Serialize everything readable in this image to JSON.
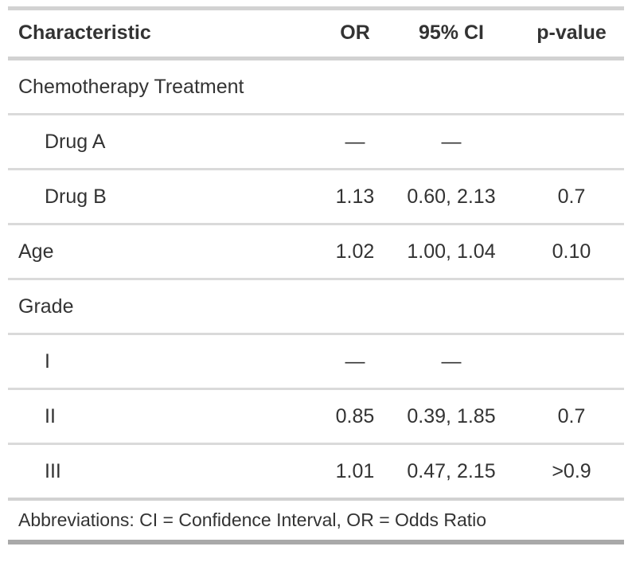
{
  "chart_data": {
    "type": "table",
    "title": "",
    "columns": [
      {
        "key": "label",
        "label": "Characteristic",
        "align": "left"
      },
      {
        "key": "or",
        "label": "OR",
        "align": "center"
      },
      {
        "key": "ci",
        "label": "95% CI",
        "align": "center"
      },
      {
        "key": "p",
        "label": "p-value",
        "align": "center"
      }
    ],
    "rows": [
      {
        "label": "Chemotherapy Treatment",
        "indent": false,
        "or": "",
        "ci": "",
        "p": ""
      },
      {
        "label": "Drug A",
        "indent": true,
        "or": "—",
        "ci": "—",
        "p": ""
      },
      {
        "label": "Drug B",
        "indent": true,
        "or": "1.13",
        "ci": "0.60, 2.13",
        "p": "0.7"
      },
      {
        "label": "Age",
        "indent": false,
        "or": "1.02",
        "ci": "1.00, 1.04",
        "p": "0.10"
      },
      {
        "label": "Grade",
        "indent": false,
        "or": "",
        "ci": "",
        "p": ""
      },
      {
        "label": "I",
        "indent": true,
        "or": "—",
        "ci": "—",
        "p": ""
      },
      {
        "label": "II",
        "indent": true,
        "or": "0.85",
        "ci": "0.39, 1.85",
        "p": "0.7"
      },
      {
        "label": "III",
        "indent": true,
        "or": "1.01",
        "ci": "0.47, 2.15",
        "p": ">0.9"
      }
    ],
    "footer": "Abbreviations: CI = Confidence Interval, OR = Odds Ratio",
    "layout_hints": {
      "grid": "horizontal row separators only",
      "header_style": "bold, top and bottom rule",
      "bottom_rule": "dark gray"
    }
  },
  "colors": {
    "text": "#333333",
    "border_light": "#D2D2D2",
    "border_row": "#DADADA",
    "border_dark": "#A9A9A9",
    "background": "#FFFFFF"
  }
}
